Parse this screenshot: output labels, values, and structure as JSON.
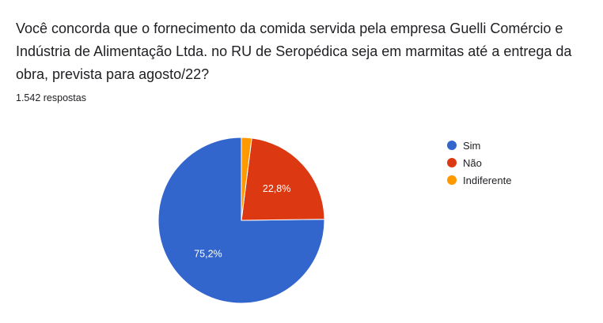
{
  "form": {
    "question": "Você concorda que o fornecimento da comida servida pela empresa Guelli Comércio e Indústria de Alimentação Ltda. no RU de Seropédica seja em marmitas até a entrega da obra, prevista para agosto/22?",
    "response_count": "1.542 respostas"
  },
  "chart_data": {
    "type": "pie",
    "title": "",
    "slices": [
      {
        "label": "Sim",
        "value": 75.2,
        "display": "75,2%",
        "color": "#3366cc"
      },
      {
        "label": "Não",
        "value": 22.8,
        "display": "22,8%",
        "color": "#dc3912"
      },
      {
        "label": "Indiferente",
        "value": 2.0,
        "display": "",
        "color": "#ff9900"
      }
    ],
    "start_angle": "12 o'clock",
    "direction": "counterclockwise",
    "legend_position": "right"
  }
}
